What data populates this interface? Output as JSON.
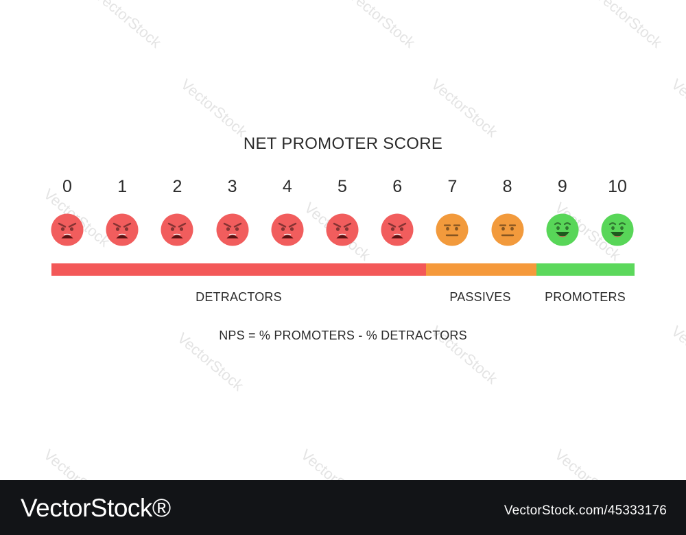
{
  "title": "NET PROMOTER SCORE",
  "scale": [
    {
      "score": "0",
      "mood": "angry",
      "color": "#f15d5d"
    },
    {
      "score": "1",
      "mood": "angry",
      "color": "#f15d5d"
    },
    {
      "score": "2",
      "mood": "angry",
      "color": "#f15d5d"
    },
    {
      "score": "3",
      "mood": "angry",
      "color": "#f15d5d"
    },
    {
      "score": "4",
      "mood": "angry",
      "color": "#f15d5d"
    },
    {
      "score": "5",
      "mood": "angry",
      "color": "#f15d5d"
    },
    {
      "score": "6",
      "mood": "angry",
      "color": "#f15d5d"
    },
    {
      "score": "7",
      "mood": "neutral",
      "color": "#f29a3c"
    },
    {
      "score": "8",
      "mood": "neutral",
      "color": "#f29a3c"
    },
    {
      "score": "9",
      "mood": "happy",
      "color": "#58d658"
    },
    {
      "score": "10",
      "mood": "happy",
      "color": "#58d658"
    }
  ],
  "groups": [
    {
      "label": "DETRACTORS",
      "from": 0,
      "to": 6,
      "color": "#f35858"
    },
    {
      "label": "PASSIVES",
      "from": 7,
      "to": 8,
      "color": "#f5993b"
    },
    {
      "label": "PROMOTERS",
      "from": 9,
      "to": 10,
      "color": "#5cd85c"
    }
  ],
  "formula": "NPS = % PROMOTERS - % DETRACTORS",
  "watermark": "VectorStock",
  "footer": {
    "brand": "VectorStock®",
    "stock_id": "VectorStock.com/45333176"
  }
}
